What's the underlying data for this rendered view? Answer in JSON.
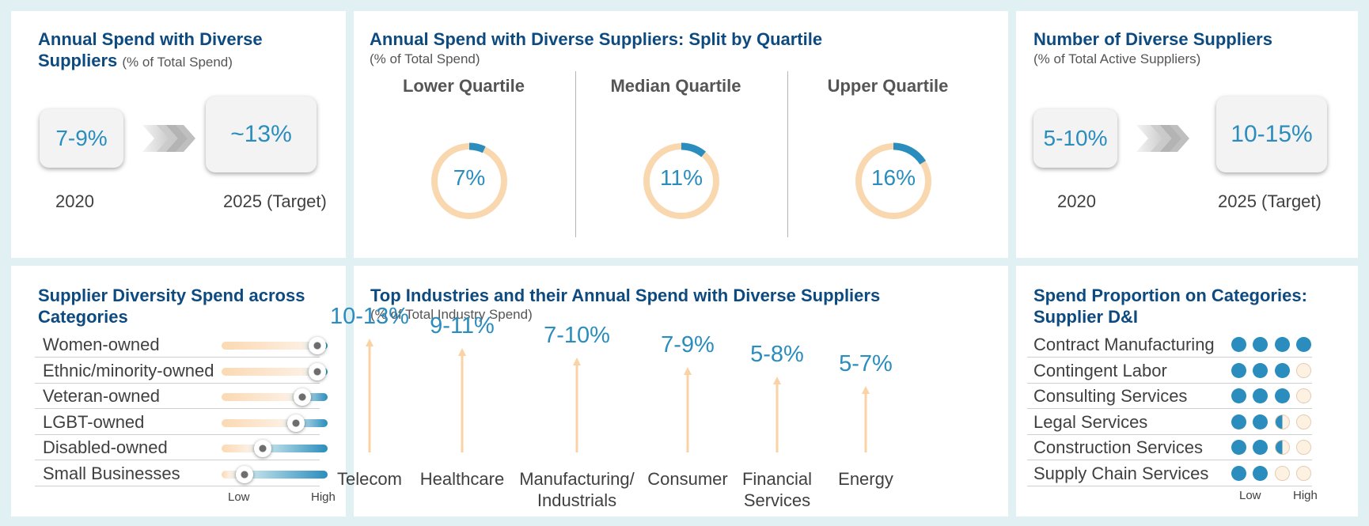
{
  "colors": {
    "accent": "#2a8dbd",
    "title": "#0d4a7f",
    "peach": "#f9d8b0",
    "frame": "#e1f1f3"
  },
  "annual_spend": {
    "title": "Annual Spend with Diverse Suppliers",
    "title_line1": "Annual Spend with Diverse",
    "title_line2": "Suppliers",
    "subtitle": "(% of Total Spend)",
    "from_value": "7-9%",
    "from_label": "2020",
    "to_value": "~13%",
    "to_label": "2025 (Target)",
    "arrow_icon": "chevron-arrows-icon"
  },
  "quartile": {
    "title": "Annual Spend with Diverse Suppliers: Split by Quartile",
    "subtitle": "(% of Total Spend)",
    "items": [
      {
        "label": "Lower Quartile",
        "value_label": "7%",
        "value": 7
      },
      {
        "label": "Median Quartile",
        "value_label": "11%",
        "value": 11
      },
      {
        "label": "Upper Quartile",
        "value_label": "16%",
        "value": 16
      }
    ]
  },
  "num_suppliers": {
    "title": "Number of Diverse Suppliers",
    "subtitle": "(% of Total Active Suppliers)",
    "from_value": "5-10%",
    "from_label": "2020",
    "to_value": "10-15%",
    "to_label": "2025 (Target)"
  },
  "categories": {
    "title_line1": "Supplier Diversity Spend across",
    "title_line2": "Categories",
    "low_label": "Low",
    "high_label": "High",
    "items": [
      {
        "label": "Women-owned",
        "level": 0.9
      },
      {
        "label": "Ethnic/minority-owned",
        "level": 0.9
      },
      {
        "label": "Veteran-owned",
        "level": 0.76
      },
      {
        "label": "LGBT-owned",
        "level": 0.7
      },
      {
        "label": "Disabled-owned",
        "level": 0.39
      },
      {
        "label": "Small Businesses",
        "level": 0.22
      }
    ]
  },
  "industries": {
    "title": "Top Industries and their Annual Spend with Diverse Suppliers",
    "subtitle": "(% of Total Industry Spend)",
    "items": [
      {
        "value": "10-13%",
        "name_line1": "Telecom",
        "name_line2": "",
        "rank": 1
      },
      {
        "value": "9-11%",
        "name_line1": "Healthcare",
        "name_line2": "",
        "rank": 2
      },
      {
        "value": "7-10%",
        "name_line1": "Manufacturing/",
        "name_line2": "Industrials",
        "rank": 3
      },
      {
        "value": "7-9%",
        "name_line1": "Consumer",
        "name_line2": "",
        "rank": 4
      },
      {
        "value": "5-8%",
        "name_line1": "Financial",
        "name_line2": "Services",
        "rank": 5
      },
      {
        "value": "5-7%",
        "name_line1": "Energy",
        "name_line2": "",
        "rank": 6
      }
    ]
  },
  "proportion": {
    "title_line1": "Spend Proportion on Categories:",
    "title_line2": "Supplier D&I",
    "low_label": "Low",
    "high_label": "High",
    "items": [
      {
        "label": "Contract Manufacturing",
        "rating": 4
      },
      {
        "label": "Contingent Labor",
        "rating": 3
      },
      {
        "label": "Consulting Services",
        "rating": 3
      },
      {
        "label": "Legal Services",
        "rating": 2.5
      },
      {
        "label": "Construction Services",
        "rating": 2.5
      },
      {
        "label": "Supply Chain Services",
        "rating": 2
      }
    ]
  }
}
